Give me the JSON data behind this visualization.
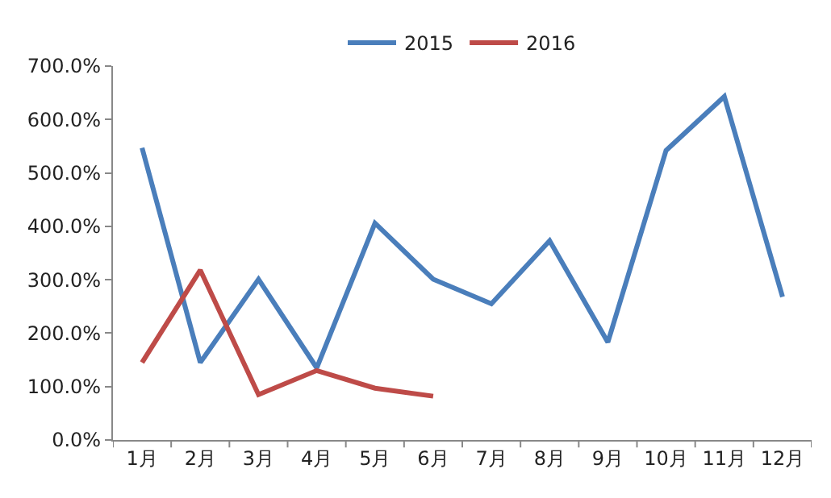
{
  "chart_data": {
    "type": "line",
    "categories": [
      "1月",
      "2月",
      "3月",
      "4月",
      "5月",
      "6月",
      "7月",
      "8月",
      "9月",
      "10月",
      "11月",
      "12月"
    ],
    "series": [
      {
        "name": "2015",
        "color": "#4a7ebb",
        "values": [
          547,
          145,
          301,
          135,
          406,
          301,
          255,
          373,
          183,
          542,
          643,
          268
        ]
      },
      {
        "name": "2016",
        "color": "#be4b48",
        "values": [
          145,
          318,
          85,
          130,
          97,
          82,
          null,
          null,
          null,
          null,
          null,
          null
        ]
      }
    ],
    "ylim": [
      0,
      700
    ],
    "yticks": [
      {
        "value": 0,
        "label": "0.0%"
      },
      {
        "value": 100,
        "label": "100.0%"
      },
      {
        "value": 200,
        "label": "200.0%"
      },
      {
        "value": 300,
        "label": "300.0%"
      },
      {
        "value": 400,
        "label": "400.0%"
      },
      {
        "value": 500,
        "label": "500.0%"
      },
      {
        "value": 600,
        "label": "600.0%"
      },
      {
        "value": 700,
        "label": "700.0%"
      }
    ],
    "grid": false,
    "legend": "top",
    "marker": "none",
    "line_style": "solid"
  }
}
